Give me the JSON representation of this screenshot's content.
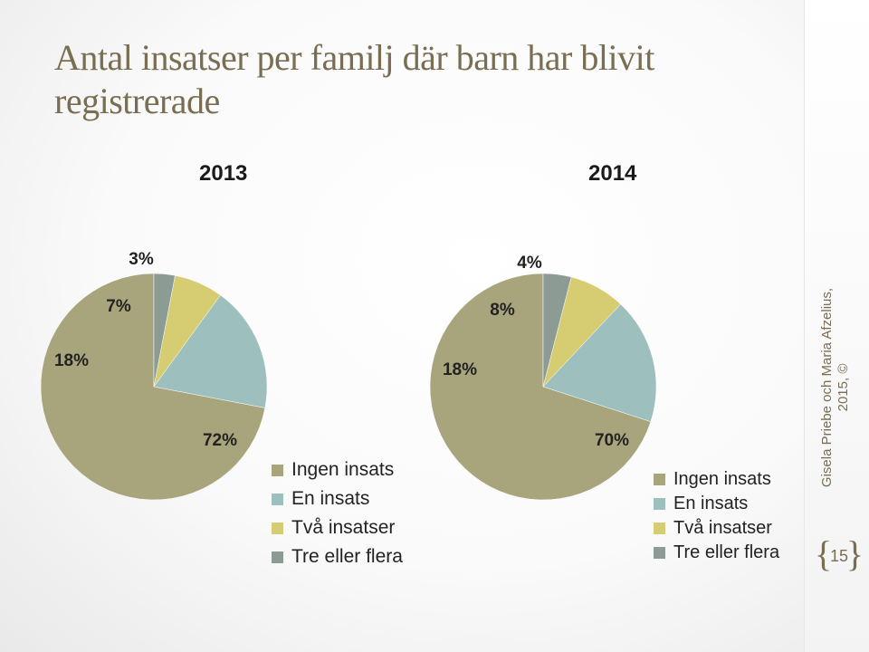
{
  "title": "Antal insatser per familj där barn har blivit registrerade",
  "footer": {
    "author": "Gisela Priebe och Maria Afzelius, 2015, ©",
    "slide_number": "15"
  },
  "colors": {
    "Ingen insats": "#a8a47c",
    "En insats": "#9dbfbd",
    "Två insatser": "#d6cd72",
    "Tre eller flera": "#8c9c95"
  },
  "chart_data": [
    {
      "type": "pie",
      "title": "2013",
      "categories": [
        "Ingen insats",
        "En insats",
        "Två insatser",
        "Tre eller flera"
      ],
      "values": [
        72,
        18,
        7,
        3
      ],
      "labels": [
        "72%",
        "18%",
        "7%",
        "3%"
      ],
      "legend": [
        "Ingen insats",
        "En insats",
        "Två insatser",
        "Tre eller flera"
      ],
      "legend_position": "bottom-right"
    },
    {
      "type": "pie",
      "title": "2014",
      "categories": [
        "Ingen insats",
        "En insats",
        "Två insatser",
        "Tre eller flera"
      ],
      "values": [
        70,
        18,
        8,
        4
      ],
      "labels": [
        "70%",
        "18%",
        "8%",
        "4%"
      ],
      "legend": [
        "Ingen insats",
        "En insats",
        "Två insatser",
        "Tre eller flera"
      ],
      "legend_position": "bottom-right"
    }
  ]
}
